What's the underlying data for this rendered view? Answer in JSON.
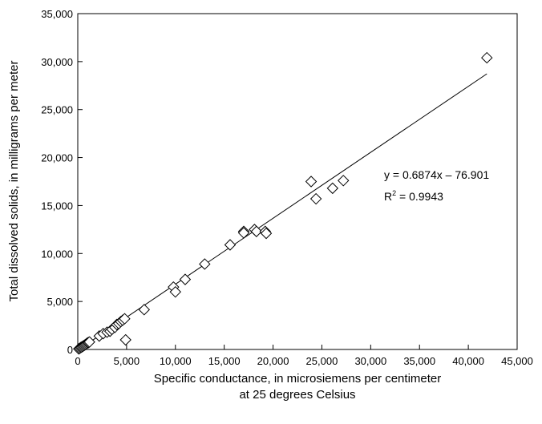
{
  "chart_data": {
    "type": "scatter",
    "title": "",
    "xlabel_line1": "Specific conductance, in microsiemens per centimeter",
    "xlabel_line2": "at 25 degrees Celsius",
    "ylabel": "Total dissolved solids, in milligrams per meter",
    "xlim": [
      0,
      45000
    ],
    "ylim": [
      0,
      35000
    ],
    "xticks": [
      "0",
      "5,000",
      "10,000",
      "15,000",
      "20,000",
      "25,000",
      "30,000",
      "35,000",
      "40,000",
      "45,000"
    ],
    "yticks": [
      "0",
      "5,000",
      "10,000",
      "15,000",
      "20,000",
      "25,000",
      "30,000",
      "35,000"
    ],
    "grid": false,
    "legend": "none",
    "marker": "open-diamond",
    "points": [
      [
        100,
        60
      ],
      [
        200,
        120
      ],
      [
        300,
        200
      ],
      [
        400,
        250
      ],
      [
        500,
        320
      ],
      [
        600,
        380
      ],
      [
        700,
        450
      ],
      [
        800,
        520
      ],
      [
        900,
        600
      ],
      [
        1000,
        680
      ],
      [
        1100,
        720
      ],
      [
        1200,
        780
      ],
      [
        2200,
        1400
      ],
      [
        2600,
        1650
      ],
      [
        3000,
        1800
      ],
      [
        3300,
        1900
      ],
      [
        3500,
        2100
      ],
      [
        3800,
        2300
      ],
      [
        4000,
        2600
      ],
      [
        4200,
        2700
      ],
      [
        4400,
        2900
      ],
      [
        4600,
        3050
      ],
      [
        4800,
        3200
      ],
      [
        4900,
        1000
      ],
      [
        6800,
        4150
      ],
      [
        9800,
        6500
      ],
      [
        10000,
        6000
      ],
      [
        11000,
        7300
      ],
      [
        13000,
        8900
      ],
      [
        15600,
        10900
      ],
      [
        17000,
        12300
      ],
      [
        17000,
        12150
      ],
      [
        18100,
        12500
      ],
      [
        18300,
        12300
      ],
      [
        19200,
        12300
      ],
      [
        19300,
        12100
      ],
      [
        23900,
        17500
      ],
      [
        24400,
        15700
      ],
      [
        26100,
        16800
      ],
      [
        27200,
        17600
      ],
      [
        41900,
        30400
      ]
    ],
    "trendline": {
      "slope": 0.6874,
      "intercept": -76.901,
      "x_range": [
        0,
        41900
      ],
      "equation_label": "y = 0.6874x – 76.901",
      "r2_prefix": "R",
      "r2_sup": "2",
      "r2_value": " = 0.9943"
    }
  }
}
